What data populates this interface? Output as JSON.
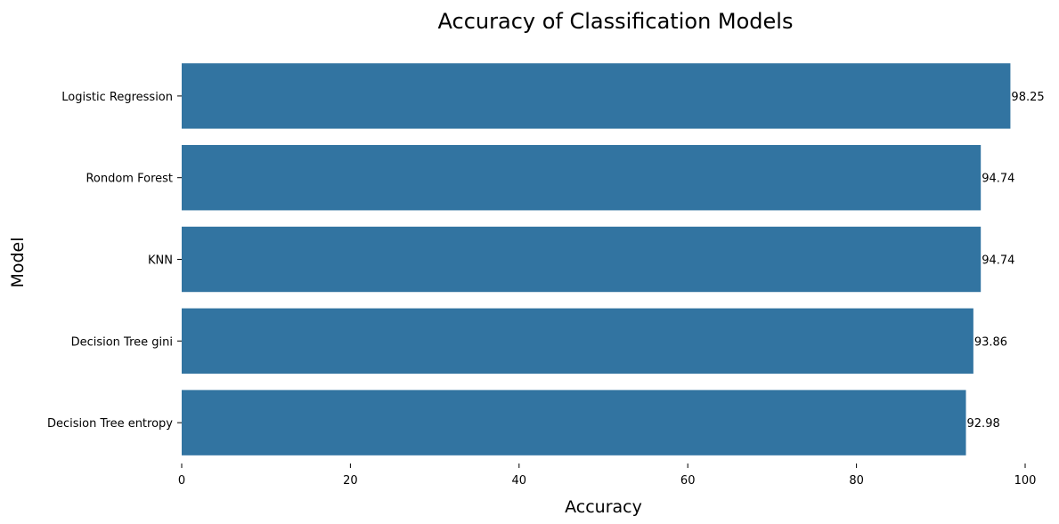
{
  "chart_data": {
    "type": "bar",
    "orientation": "horizontal",
    "title": "Accuracy of Classification Models",
    "xlabel": "Accuracy",
    "ylabel": "Model",
    "categories": [
      "Logistic Regression",
      "Rondom Forest",
      "KNN",
      "Decision Tree gini",
      "Decision Tree entropy"
    ],
    "values": [
      98.25,
      94.74,
      94.74,
      93.86,
      92.98
    ],
    "data_labels": [
      "98.25",
      "94.74",
      "94.74",
      "93.86",
      "92.98"
    ],
    "xlim": [
      0,
      100
    ],
    "xticks": [
      0,
      20,
      40,
      60,
      80,
      100
    ],
    "xtick_labels": [
      "0",
      "20",
      "40",
      "60",
      "80",
      "100"
    ],
    "grid": false,
    "bar_color": "#3274a1"
  }
}
